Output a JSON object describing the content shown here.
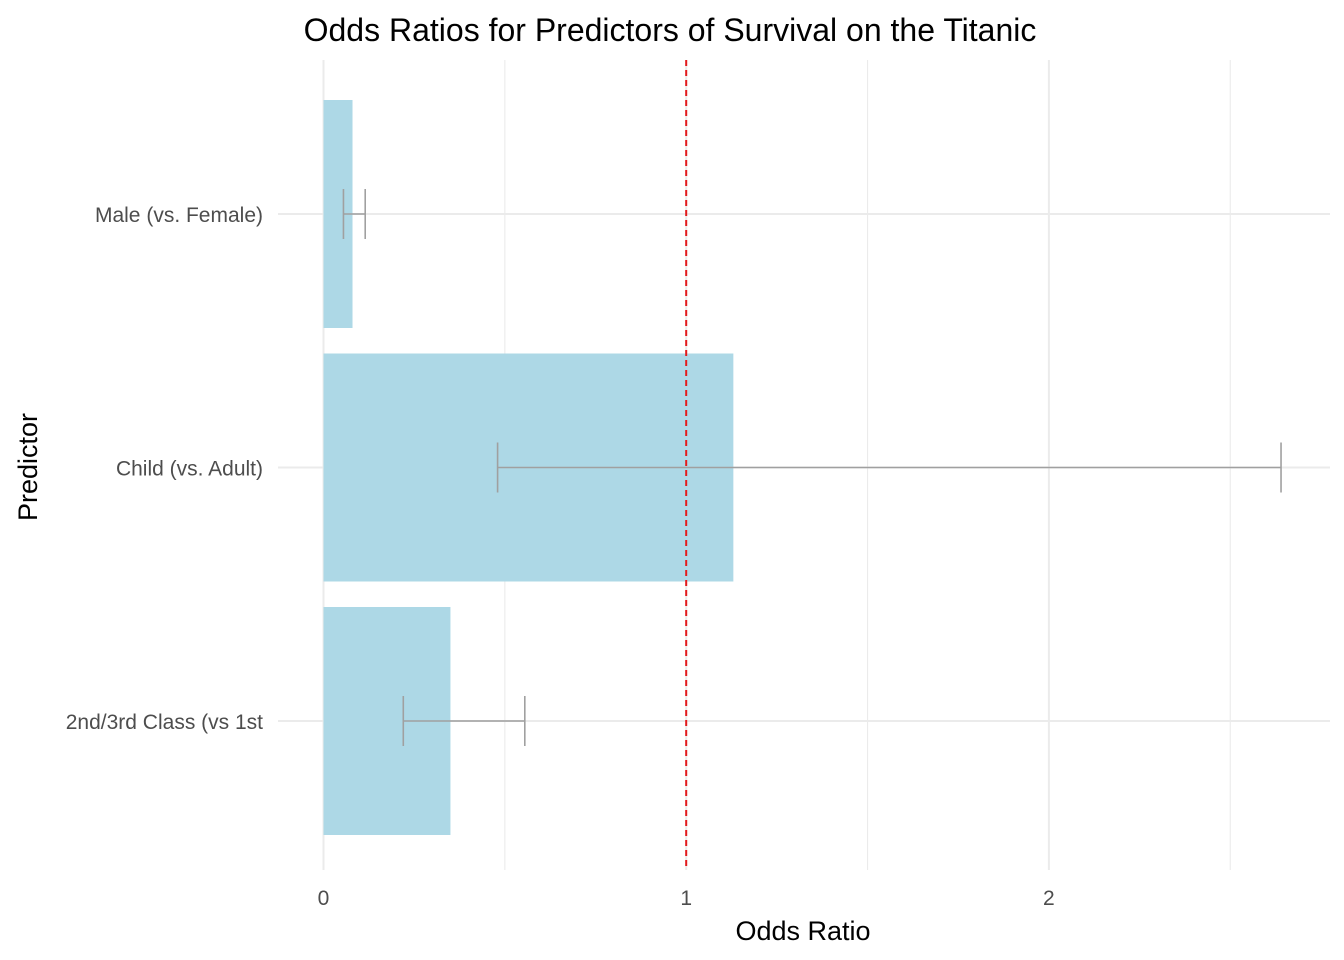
{
  "chart_data": {
    "type": "bar",
    "orientation": "horizontal",
    "title": "Odds Ratios for Predictors of Survival on the Titanic",
    "xlabel": "Odds Ratio",
    "ylabel": "Predictor",
    "xlim": [
      0,
      2.77
    ],
    "x_ticks": [
      0,
      1,
      2
    ],
    "x_minor_gridlines": [
      0.5,
      1.5,
      2.5
    ],
    "grid": true,
    "categories": [
      "Male (vs. Female)",
      "Child (vs. Adult)",
      "2nd/3rd Class (vs 1st"
    ],
    "values": [
      0.08,
      1.13,
      0.35
    ],
    "ci_lower": [
      0.055,
      0.48,
      0.22
    ],
    "ci_upper": [
      0.115,
      2.64,
      0.555
    ],
    "reference_line": 1,
    "colors": {
      "bar": "#add8e6",
      "error_bar": "#a0a0a0",
      "reference_line": "#e31a1c",
      "grid": "#ebebeb"
    }
  }
}
